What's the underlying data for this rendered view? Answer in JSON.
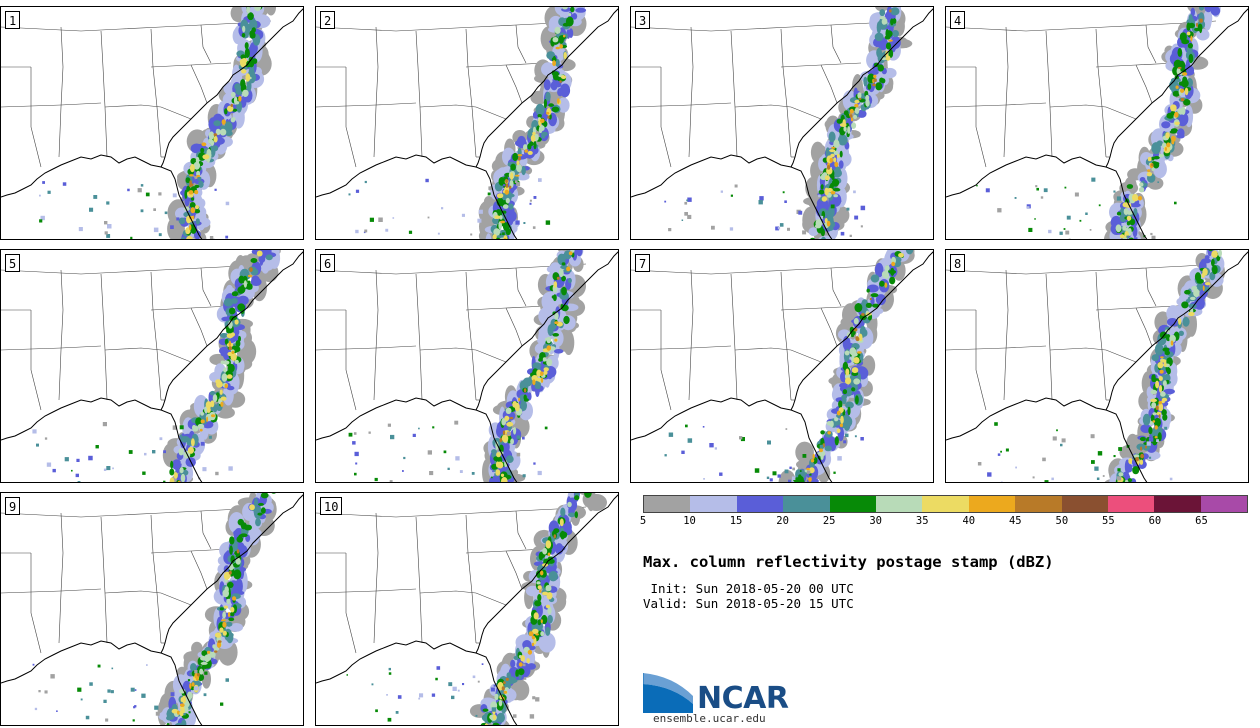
{
  "panels": [
    {
      "label": "1",
      "seed": 11
    },
    {
      "label": "2",
      "seed": 23
    },
    {
      "label": "3",
      "seed": 37
    },
    {
      "label": "4",
      "seed": 41
    },
    {
      "label": "5",
      "seed": 53
    },
    {
      "label": "6",
      "seed": 67
    },
    {
      "label": "7",
      "seed": 71
    },
    {
      "label": "8",
      "seed": 89
    },
    {
      "label": "9",
      "seed": 97
    },
    {
      "label": "10",
      "seed": 103
    }
  ],
  "colorbar": {
    "colors": [
      "#a2a2a2",
      "#b5bde8",
      "#5a5ed8",
      "#4a9099",
      "#078a07",
      "#b8dbb8",
      "#ecdb63",
      "#eca91e",
      "#b87a28",
      "#8a5030",
      "#ec4f7c",
      "#6b1437",
      "#a84aa8"
    ],
    "tick_labels": [
      "5",
      "10",
      "15",
      "20",
      "25",
      "30",
      "35",
      "40",
      "45",
      "50",
      "55",
      "60",
      "65"
    ]
  },
  "title": "Max. column reflectivity postage stamp (dBZ)",
  "init_line": " Init: Sun 2018-05-20 00 UTC",
  "valid_line": "Valid: Sun 2018-05-20 15 UTC",
  "logo": {
    "text": "NCAR",
    "url": "ensemble.ucar.edu"
  }
}
